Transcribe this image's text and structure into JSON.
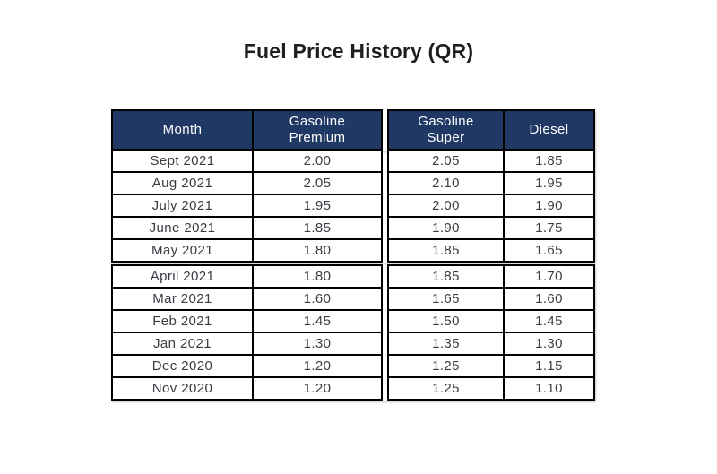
{
  "page": {
    "title": "Fuel Price History (QR)"
  },
  "colors": {
    "header_bg": "#1f3864",
    "header_text": "#ffffff",
    "body_text": "#3b3b44",
    "border": "#000000",
    "title_text": "#1f1f1f"
  },
  "table": {
    "columns": [
      {
        "key": "month",
        "label": "Month"
      },
      {
        "key": "premium",
        "label": "Gasoline\nPremium"
      },
      {
        "key": "super",
        "label": "Gasoline\nSuper"
      },
      {
        "key": "diesel",
        "label": "Diesel"
      }
    ],
    "rows": [
      {
        "month": "Sept 2021",
        "premium": "2.00",
        "super": "2.05",
        "diesel": "1.85"
      },
      {
        "month": "Aug 2021",
        "premium": "2.05",
        "super": "2.10",
        "diesel": "1.95"
      },
      {
        "month": "July 2021",
        "premium": "1.95",
        "super": "2.00",
        "diesel": "1.90"
      },
      {
        "month": "June 2021",
        "premium": "1.85",
        "super": "1.90",
        "diesel": "1.75"
      },
      {
        "month": "May 2021",
        "premium": "1.80",
        "super": "1.85",
        "diesel": "1.65"
      },
      {
        "month": "April 2021",
        "premium": "1.80",
        "super": "1.85",
        "diesel": "1.70"
      },
      {
        "month": "Mar 2021",
        "premium": "1.60",
        "super": "1.65",
        "diesel": "1.60"
      },
      {
        "month": "Feb 2021",
        "premium": "1.45",
        "super": "1.50",
        "diesel": "1.45"
      },
      {
        "month": "Jan 2021",
        "premium": "1.30",
        "super": "1.35",
        "diesel": "1.30"
      },
      {
        "month": "Dec 2020",
        "premium": "1.20",
        "super": "1.25",
        "diesel": "1.15"
      },
      {
        "month": "Nov 2020",
        "premium": "1.20",
        "super": "1.25",
        "diesel": "1.10"
      }
    ]
  },
  "chart_data": {
    "type": "table",
    "title": "Fuel Price History (QR)",
    "columns": [
      "Month",
      "Gasoline Premium",
      "Gasoline Super",
      "Diesel"
    ],
    "rows": [
      [
        "Sept 2021",
        2.0,
        2.05,
        1.85
      ],
      [
        "Aug 2021",
        2.05,
        2.1,
        1.95
      ],
      [
        "July 2021",
        1.95,
        2.0,
        1.9
      ],
      [
        "June 2021",
        1.85,
        1.9,
        1.75
      ],
      [
        "May 2021",
        1.8,
        1.85,
        1.65
      ],
      [
        "April 2021",
        1.8,
        1.85,
        1.7
      ],
      [
        "Mar 2021",
        1.6,
        1.65,
        1.6
      ],
      [
        "Feb 2021",
        1.45,
        1.5,
        1.45
      ],
      [
        "Jan 2021",
        1.3,
        1.35,
        1.3
      ],
      [
        "Dec 2020",
        1.2,
        1.25,
        1.15
      ],
      [
        "Nov 2020",
        1.2,
        1.25,
        1.1
      ]
    ]
  }
}
